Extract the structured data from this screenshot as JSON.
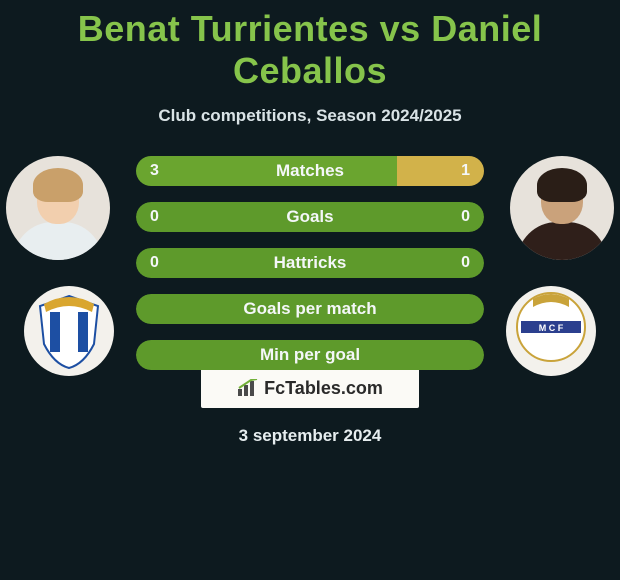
{
  "background_color": "#0d1a1f",
  "title": {
    "text": "Benat Turrientes vs Daniel Ceballos",
    "color": "#86c44b",
    "font_size": 36
  },
  "subtitle": {
    "text": "Club competitions, Season 2024/2025",
    "color": "#d9e3e6",
    "font_size": 17
  },
  "player_left": {
    "skin": "#f2cfae",
    "hair": "#c9a06a",
    "shirt": "#e8eef0"
  },
  "player_right": {
    "skin": "#caa27b",
    "hair": "#2a1e17",
    "shirt": "#2f1f1a"
  },
  "crest_left": {
    "bg": "#ffffff",
    "stripe1": "#1d4fa3",
    "stripe2": "#1d4fa3",
    "accent": "#d9a62f"
  },
  "crest_right": {
    "bg": "#ffffff",
    "accent": "#c9a33a",
    "band": "#2b3f8e"
  },
  "bars": {
    "left_color": "#6aa52f",
    "right_color": "#d2b24a",
    "neutral_color": "#5e9a2b",
    "border_radius": 16,
    "rows": [
      {
        "label": "Matches",
        "left": "3",
        "right": "1",
        "left_pct": 75,
        "right_pct": 25,
        "show_values": true,
        "fill_mode": "split"
      },
      {
        "label": "Goals",
        "left": "0",
        "right": "0",
        "left_pct": 50,
        "right_pct": 50,
        "show_values": true,
        "fill_mode": "neutral"
      },
      {
        "label": "Hattricks",
        "left": "0",
        "right": "0",
        "left_pct": 50,
        "right_pct": 50,
        "show_values": true,
        "fill_mode": "neutral"
      },
      {
        "label": "Goals per match",
        "left": "",
        "right": "",
        "left_pct": 50,
        "right_pct": 50,
        "show_values": false,
        "fill_mode": "neutral"
      },
      {
        "label": "Min per goal",
        "left": "",
        "right": "",
        "left_pct": 50,
        "right_pct": 50,
        "show_values": false,
        "fill_mode": "neutral"
      }
    ]
  },
  "brand": {
    "text": "FcTables.com",
    "bg": "#fbfaf6",
    "color": "#2a2a2a"
  },
  "date": {
    "text": "3 september 2024",
    "color": "#e6edef"
  }
}
